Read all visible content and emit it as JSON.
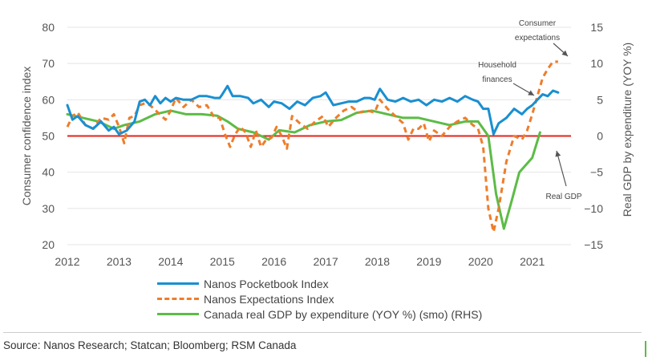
{
  "chart_data": {
    "type": "line",
    "ylabel": "Consumer confidence index",
    "y2label": "Real GDP by expenditure (YOY %)",
    "ylim": [
      20,
      80
    ],
    "y2lim": [
      -15,
      15
    ],
    "yticks": [
      20,
      30,
      40,
      50,
      60,
      70,
      80
    ],
    "y2ticks": [
      -15,
      -10,
      -5,
      0,
      5,
      10,
      15
    ],
    "xlim": [
      2012,
      2021.75
    ],
    "xticks": [
      "2012",
      "2013",
      "2014",
      "2015",
      "2016",
      "2017",
      "2018",
      "2019",
      "2020",
      "2021"
    ],
    "reference_line": {
      "axis": "left",
      "value": 50,
      "color": "#e2231a"
    },
    "grid": "horizontal",
    "series": [
      {
        "name": "Nanos Pocketbook Index",
        "axis": "left",
        "color": "#1a8fd1",
        "style": "solid",
        "x": [
          2012.0,
          2012.1,
          2012.2,
          2012.35,
          2012.5,
          2012.65,
          2012.8,
          2012.9,
          2013.0,
          2013.15,
          2013.3,
          2013.4,
          2013.5,
          2013.6,
          2013.7,
          2013.8,
          2013.9,
          2014.0,
          2014.1,
          2014.25,
          2014.4,
          2014.55,
          2014.7,
          2014.85,
          2014.95,
          2015.0,
          2015.1,
          2015.2,
          2015.35,
          2015.5,
          2015.6,
          2015.75,
          2015.9,
          2016.0,
          2016.15,
          2016.3,
          2016.45,
          2016.6,
          2016.75,
          2016.9,
          2017.0,
          2017.15,
          2017.3,
          2017.45,
          2017.6,
          2017.75,
          2017.85,
          2017.95,
          2018.05,
          2018.2,
          2018.35,
          2018.5,
          2018.65,
          2018.8,
          2018.95,
          2019.1,
          2019.25,
          2019.4,
          2019.55,
          2019.7,
          2019.85,
          2019.95,
          2020.05,
          2020.15,
          2020.25,
          2020.35,
          2020.5,
          2020.65,
          2020.8,
          2020.9,
          2021.0,
          2021.1,
          2021.2,
          2021.3,
          2021.4,
          2021.5
        ],
        "y": [
          58.5,
          54.5,
          55.5,
          53.0,
          52.0,
          54.0,
          51.5,
          52.5,
          50.5,
          51.5,
          54.0,
          59.5,
          60.0,
          58.5,
          61.0,
          59.0,
          60.5,
          59.5,
          60.5,
          60.0,
          60.0,
          61.0,
          61.0,
          60.5,
          60.5,
          61.5,
          63.8,
          61.0,
          61.0,
          60.5,
          59.0,
          60.0,
          58.0,
          59.5,
          59.0,
          57.5,
          59.5,
          58.5,
          60.5,
          61.0,
          62.0,
          58.5,
          59.0,
          59.5,
          59.5,
          60.5,
          60.5,
          60.0,
          63.0,
          60.0,
          59.5,
          60.5,
          59.5,
          60.0,
          58.5,
          60.0,
          59.5,
          60.5,
          59.5,
          61.0,
          60.0,
          59.5,
          57.5,
          57.5,
          50.5,
          53.5,
          55.0,
          57.5,
          56.0,
          57.5,
          58.5,
          60.0,
          61.5,
          61.0,
          62.5,
          62.0
        ]
      },
      {
        "name": "Nanos Expectations Index",
        "axis": "left",
        "color": "#ee7d2b",
        "style": "dashed",
        "x": [
          2012.0,
          2012.1,
          2012.2,
          2012.35,
          2012.5,
          2012.65,
          2012.8,
          2012.9,
          2013.0,
          2013.1,
          2013.2,
          2013.3,
          2013.4,
          2013.5,
          2013.6,
          2013.75,
          2013.9,
          2014.0,
          2014.1,
          2014.25,
          2014.4,
          2014.55,
          2014.7,
          2014.85,
          2014.95,
          2015.05,
          2015.15,
          2015.25,
          2015.35,
          2015.45,
          2015.55,
          2015.65,
          2015.75,
          2015.85,
          2015.95,
          2016.05,
          2016.15,
          2016.25,
          2016.35,
          2016.5,
          2016.65,
          2016.8,
          2016.95,
          2017.05,
          2017.2,
          2017.35,
          2017.5,
          2017.65,
          2017.8,
          2017.95,
          2018.05,
          2018.2,
          2018.35,
          2018.5,
          2018.6,
          2018.7,
          2018.8,
          2018.9,
          2019.0,
          2019.1,
          2019.25,
          2019.4,
          2019.55,
          2019.7,
          2019.85,
          2019.95,
          2020.05,
          2020.15,
          2020.25,
          2020.35,
          2020.5,
          2020.65,
          2020.8,
          2020.9,
          2021.0,
          2021.1,
          2021.2,
          2021.3,
          2021.4,
          2021.5
        ],
        "y": [
          52.5,
          55.5,
          56.5,
          53.0,
          52.0,
          55.0,
          54.5,
          56.0,
          52.5,
          48.0,
          55.0,
          55.5,
          58.5,
          59.0,
          58.5,
          56.5,
          54.5,
          57.0,
          60.5,
          58.0,
          60.0,
          58.0,
          58.5,
          55.0,
          55.0,
          50.5,
          47.0,
          50.5,
          52.5,
          51.0,
          47.0,
          51.5,
          47.0,
          49.0,
          49.5,
          52.5,
          50.0,
          46.5,
          55.5,
          53.5,
          52.0,
          54.0,
          55.5,
          52.5,
          55.0,
          57.0,
          58.0,
          56.5,
          57.0,
          56.5,
          60.0,
          57.5,
          55.5,
          53.5,
          49.0,
          52.0,
          52.0,
          53.5,
          48.5,
          51.5,
          50.0,
          52.5,
          54.0,
          55.0,
          53.0,
          52.0,
          47.0,
          30.0,
          23.5,
          30.0,
          43.0,
          50.0,
          49.0,
          51.5,
          56.0,
          61.0,
          66.0,
          68.5,
          70.5,
          70.5
        ]
      },
      {
        "name": "Canada real GDP by expenditure (YOY %) (smo) (RHS)",
        "axis": "right",
        "color": "#5cbc46",
        "style": "solid",
        "x": [
          2012.0,
          2012.3,
          2012.6,
          2012.9,
          2013.1,
          2013.4,
          2013.7,
          2014.0,
          2014.3,
          2014.6,
          2014.9,
          2015.1,
          2015.3,
          2015.6,
          2015.9,
          2016.1,
          2016.4,
          2016.7,
          2017.0,
          2017.3,
          2017.6,
          2017.9,
          2018.2,
          2018.5,
          2018.8,
          2019.1,
          2019.4,
          2019.7,
          2019.95,
          2020.15,
          2020.3,
          2020.45,
          2020.6,
          2020.75,
          2021.0,
          2021.15
        ],
        "y": [
          3.0,
          2.5,
          2.0,
          1.0,
          1.5,
          2.0,
          3.0,
          3.5,
          3.0,
          3.0,
          2.8,
          2.0,
          1.0,
          0.5,
          -0.5,
          0.8,
          0.5,
          1.5,
          2.0,
          2.2,
          3.2,
          3.5,
          3.0,
          2.5,
          2.5,
          2.0,
          1.5,
          2.0,
          2.0,
          0.0,
          -8.0,
          -12.8,
          -9.0,
          -5.0,
          -3.0,
          0.5
        ]
      }
    ],
    "annotations": [
      {
        "lines": [
          "Consumer",
          "expectations"
        ]
      },
      {
        "lines": [
          "Household",
          "finances"
        ]
      },
      {
        "lines": [
          "Real GDP"
        ]
      }
    ]
  },
  "legend": {
    "items": [
      {
        "label": "Nanos Pocketbook Index"
      },
      {
        "label": "Nanos Expectations Index"
      },
      {
        "label": "Canada real GDP by expenditure (YOY %) (smo) (RHS)"
      }
    ]
  },
  "source": "Source: Nanos Research; Statcan; Bloomberg; RSM Canada"
}
